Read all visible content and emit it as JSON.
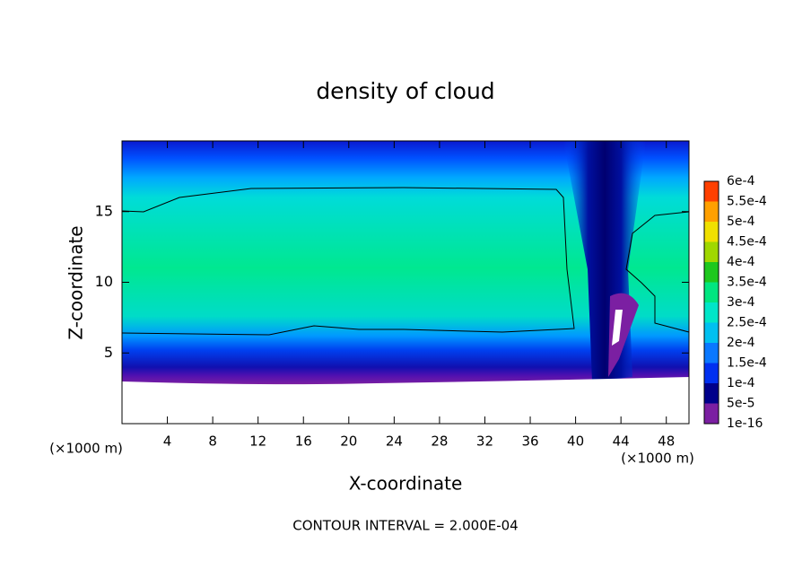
{
  "chart_data": {
    "type": "contour",
    "title": "density of cloud",
    "xlabel": "X-coordinate",
    "ylabel": "Z-coordinate",
    "xunit": "(×1000 m)",
    "yunit": "(×1000 m)",
    "footer": "CONTOUR INTERVAL = 2.000E-04",
    "xlim": [
      0,
      50
    ],
    "xticks": [
      4,
      8,
      12,
      16,
      20,
      24,
      28,
      32,
      36,
      40,
      44,
      48
    ],
    "ylim": [
      0,
      20
    ],
    "yticks": [
      5,
      10,
      15
    ],
    "colorbar": {
      "levels": [
        {
          "value": 1e-16,
          "label": "1e-16"
        },
        {
          "value": 5e-05,
          "label": "5e-5"
        },
        {
          "value": 0.0001,
          "label": "1e-4"
        },
        {
          "value": 0.00015,
          "label": "1.5e-4"
        },
        {
          "value": 0.0002,
          "label": "2e-4"
        },
        {
          "value": 0.00025,
          "label": "2.5e-4"
        },
        {
          "value": 0.0003,
          "label": "3e-4"
        },
        {
          "value": 0.00035,
          "label": "3.5e-4"
        },
        {
          "value": 0.0004,
          "label": "4e-4"
        },
        {
          "value": 0.00045,
          "label": "4.5e-4"
        },
        {
          "value": 0.0005,
          "label": "5e-4"
        },
        {
          "value": 0.00055,
          "label": "5.5e-4"
        },
        {
          "value": 0.0006,
          "label": "6e-4"
        }
      ],
      "colors": [
        "#7b1fa2",
        "#00008b",
        "#0030f0",
        "#0a78ff",
        "#00c0f0",
        "#00e6c8",
        "#00e680",
        "#1ec81e",
        "#a0d800",
        "#f0e000",
        "#ffa000",
        "#ff4000",
        "#ff9090"
      ]
    }
  }
}
